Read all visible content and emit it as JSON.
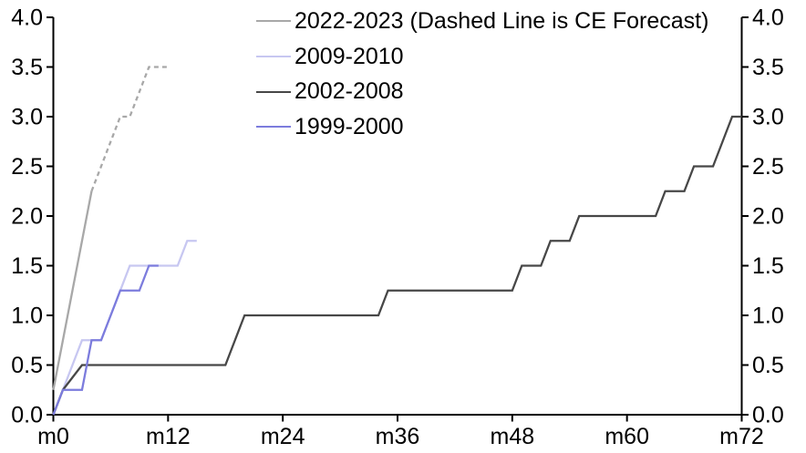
{
  "chart_data": {
    "type": "line",
    "title": "",
    "xlabel": "",
    "ylabel": "",
    "xlim": [
      0,
      72
    ],
    "ylim": [
      0,
      4.0
    ],
    "grid": false,
    "dual_y_axis": true,
    "legend_position": "top-center",
    "x_tick_values": [
      0,
      12,
      24,
      36,
      48,
      60,
      72
    ],
    "x_tick_labels": [
      "m0",
      "m12",
      "m24",
      "m36",
      "m48",
      "m60",
      "m72"
    ],
    "y_tick_values": [
      0,
      0.5,
      1.0,
      1.5,
      2.0,
      2.5,
      3.0,
      3.5,
      4.0
    ],
    "y_tick_labels": [
      "0.0",
      "0.5",
      "1.0",
      "1.5",
      "2.0",
      "2.5",
      "3.0",
      "3.5",
      "4.0"
    ],
    "series": [
      {
        "name": "2022-2023 (Dashed Line is CE Forecast)",
        "color": "#a8a8a8",
        "segments": [
          {
            "style": "solid",
            "points": [
              [
                0,
                0.25
              ],
              [
                1,
                0.75
              ],
              [
                2,
                1.25
              ],
              [
                3,
                1.75
              ],
              [
                4,
                2.25
              ]
            ]
          },
          {
            "style": "dashed",
            "points": [
              [
                4,
                2.25
              ],
              [
                5,
                2.5
              ],
              [
                6,
                2.75
              ],
              [
                7,
                3.0
              ],
              [
                8,
                3.0
              ],
              [
                9,
                3.25
              ],
              [
                10,
                3.5
              ],
              [
                12,
                3.5
              ]
            ]
          }
        ]
      },
      {
        "name": "2009-2010",
        "color": "#c7c7f1",
        "segments": [
          {
            "style": "solid",
            "points": [
              [
                0,
                0
              ],
              [
                1,
                0.25
              ],
              [
                2,
                0.5
              ],
              [
                3,
                0.75
              ],
              [
                5,
                0.75
              ],
              [
                6,
                1.0
              ],
              [
                7,
                1.25
              ],
              [
                8,
                1.5
              ],
              [
                13,
                1.5
              ],
              [
                14,
                1.75
              ],
              [
                15,
                1.75
              ]
            ]
          }
        ]
      },
      {
        "name": "2002-2008",
        "color": "#474747",
        "segments": [
          {
            "style": "solid",
            "points": [
              [
                0,
                0
              ],
              [
                1,
                0.25
              ],
              [
                3,
                0.5
              ],
              [
                18,
                0.5
              ],
              [
                19,
                0.75
              ],
              [
                20,
                1.0
              ],
              [
                34,
                1.0
              ],
              [
                35,
                1.25
              ],
              [
                48,
                1.25
              ],
              [
                49,
                1.5
              ],
              [
                51,
                1.5
              ],
              [
                52,
                1.75
              ],
              [
                54,
                1.75
              ],
              [
                55,
                2.0
              ],
              [
                63,
                2.0
              ],
              [
                64,
                2.25
              ],
              [
                66,
                2.25
              ],
              [
                67,
                2.5
              ],
              [
                69,
                2.5
              ],
              [
                70,
                2.75
              ],
              [
                71,
                3.0
              ],
              [
                72,
                3.0
              ]
            ]
          }
        ]
      },
      {
        "name": "1999-2000",
        "color": "#7c7cdd",
        "segments": [
          {
            "style": "solid",
            "points": [
              [
                0,
                0
              ],
              [
                1,
                0.25
              ],
              [
                3,
                0.25
              ],
              [
                4,
                0.75
              ],
              [
                5,
                0.75
              ],
              [
                6,
                1.0
              ],
              [
                7,
                1.25
              ],
              [
                9,
                1.25
              ],
              [
                10,
                1.5
              ],
              [
                11,
                1.5
              ]
            ]
          }
        ]
      }
    ]
  }
}
